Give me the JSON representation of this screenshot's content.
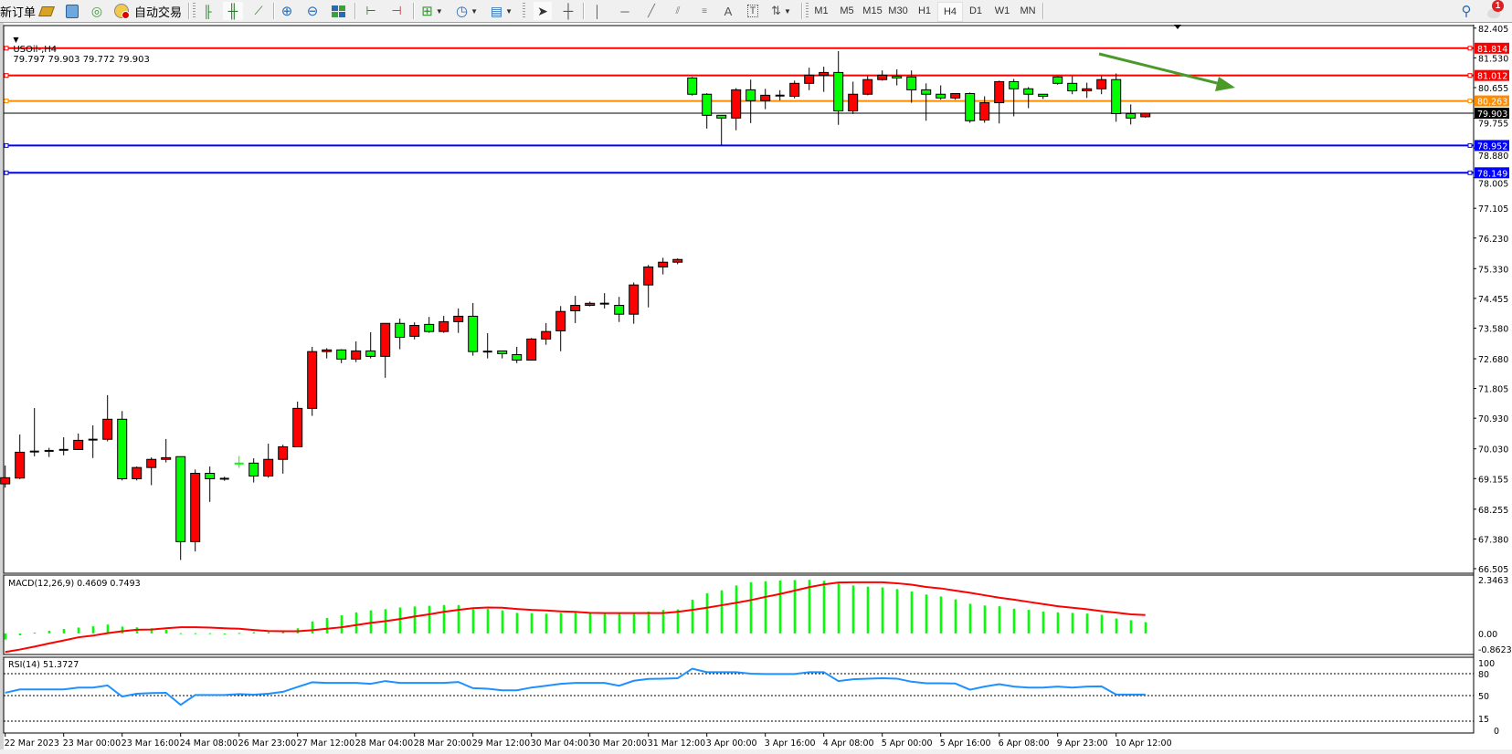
{
  "toolbar": {
    "new_order": "新订单",
    "auto_trading": "自动交易",
    "periods": [
      "M1",
      "M5",
      "M15",
      "M30",
      "H1",
      "H4",
      "D1",
      "W1",
      "MN"
    ],
    "active_period": "H4",
    "notification_count": "1",
    "icons": [
      "new-order",
      "market-watch",
      "navigator",
      "signal",
      "auto-trading",
      "bar-chart",
      "candlestick-chart",
      "line-chart",
      "zoom-in",
      "zoom-out",
      "tile-windows",
      "chart-shift",
      "autoscroll",
      "indicators",
      "periodicity",
      "templates",
      "cursor",
      "crosshair",
      "vertical-line",
      "horizontal-line",
      "trendline",
      "equidistant-channel",
      "fibonacci",
      "text",
      "text-label",
      "arrows",
      "search",
      "notifications"
    ]
  },
  "chart": {
    "symbol": "USOil-,H4",
    "ohlc_readout": "79.797 79.903 79.772 79.903",
    "bid_label": "79.903",
    "price_ticks": [
      "82.405",
      "81.530",
      "80.655",
      "79.755",
      "78.880",
      "78.005",
      "77.105",
      "76.230",
      "75.330",
      "74.455",
      "73.580",
      "72.680",
      "71.805",
      "70.930",
      "70.030",
      "69.155",
      "68.255",
      "67.380",
      "66.505"
    ],
    "levels": [
      {
        "price": 81.814,
        "label": "81.814",
        "color": "#ff0000"
      },
      {
        "price": 81.012,
        "label": "81.012",
        "color": "#ff0000"
      },
      {
        "price": 80.263,
        "label": "80.263",
        "color": "#ff8c00"
      },
      {
        "price": 78.952,
        "label": "78.952",
        "color": "#0000ff"
      },
      {
        "price": 78.149,
        "label": "78.149",
        "color": "#0000ff"
      }
    ],
    "arrow_color": "#4a9a2a",
    "bull_color": "#ff0000",
    "bear_color": "#00ff00",
    "time_labels": [
      "22 Mar 2023",
      "23 Mar 00:00",
      "23 Mar 16:00",
      "24 Mar 08:00",
      "26 Mar 23:00",
      "27 Mar 12:00",
      "28 Mar 04:00",
      "28 Mar 20:00",
      "29 Mar 12:00",
      "30 Mar 04:00",
      "30 Mar 20:00",
      "31 Mar 12:00",
      "3 Apr 00:00",
      "3 Apr 16:00",
      "4 Apr 08:00",
      "5 Apr 00:00",
      "5 Apr 16:00",
      "6 Apr 08:00",
      "9 Apr 23:00",
      "10 Apr 12:00"
    ]
  },
  "macd": {
    "label": "MACD(12,26,9) 0.4609 0.7493",
    "axis_labels": [
      "2.3463",
      "0.00",
      "-0.8623"
    ],
    "max": 2.3463,
    "min": -0.8623,
    "histogram_color": "#00ff00",
    "signal_color": "#ff0000"
  },
  "rsi": {
    "label": "RSI(14) 51.3727",
    "axis_labels": [
      "100",
      "80",
      "50",
      "15",
      "0"
    ],
    "levels": [
      80,
      50,
      15
    ],
    "line_color": "#1e90ff"
  },
  "chart_data": {
    "type": "candlestick",
    "ylim": [
      66.37,
      82.48
    ],
    "ohlc": [
      [
        69.0,
        69.54,
        68.89,
        69.18
      ],
      [
        69.17,
        70.45,
        69.14,
        69.93
      ],
      [
        69.95,
        71.23,
        69.81,
        69.95
      ],
      [
        69.97,
        70.06,
        69.79,
        69.97
      ],
      [
        70.0,
        70.37,
        69.84,
        70.0
      ],
      [
        70.01,
        70.48,
        70.0,
        70.28
      ],
      [
        70.3,
        70.72,
        69.76,
        70.3
      ],
      [
        70.31,
        71.61,
        70.25,
        70.9
      ],
      [
        70.9,
        71.14,
        69.1,
        69.15
      ],
      [
        69.15,
        69.51,
        69.1,
        69.48
      ],
      [
        69.48,
        69.78,
        68.96,
        69.72
      ],
      [
        69.72,
        70.32,
        69.63,
        69.77
      ],
      [
        69.8,
        69.8,
        66.76,
        67.3
      ],
      [
        67.3,
        69.42,
        67.01,
        69.31
      ],
      [
        69.31,
        69.51,
        68.47,
        69.15
      ],
      [
        69.15,
        69.21,
        69.09,
        69.15
      ],
      [
        69.6,
        69.82,
        69.47,
        69.595
      ],
      [
        69.61,
        69.75,
        69.04,
        69.23
      ],
      [
        69.23,
        70.18,
        69.18,
        69.72
      ],
      [
        69.72,
        70.15,
        69.3,
        70.09
      ],
      [
        70.09,
        71.42,
        70.09,
        71.22
      ],
      [
        71.22,
        73.03,
        71.0,
        72.89
      ],
      [
        72.89,
        72.99,
        72.69,
        72.94
      ],
      [
        72.94,
        72.96,
        72.55,
        72.67
      ],
      [
        72.67,
        73.19,
        72.58,
        72.91
      ],
      [
        72.91,
        73.46,
        72.69,
        72.75
      ],
      [
        72.75,
        73.72,
        72.12,
        73.72
      ],
      [
        73.72,
        73.86,
        72.96,
        73.31
      ],
      [
        73.34,
        73.75,
        73.25,
        73.66
      ],
      [
        73.69,
        73.91,
        73.44,
        73.48
      ],
      [
        73.48,
        73.94,
        73.44,
        73.77
      ],
      [
        73.77,
        74.16,
        73.44,
        73.93
      ],
      [
        73.93,
        74.32,
        72.77,
        72.89
      ],
      [
        72.89,
        73.43,
        72.69,
        72.89
      ],
      [
        72.91,
        72.91,
        72.69,
        72.83
      ],
      [
        72.8,
        73.03,
        72.55,
        72.64
      ],
      [
        72.64,
        73.29,
        72.64,
        73.26
      ],
      [
        73.26,
        73.73,
        73.09,
        73.48
      ],
      [
        73.5,
        74.23,
        72.9,
        74.07
      ],
      [
        74.09,
        74.53,
        73.73,
        74.25
      ],
      [
        74.25,
        74.36,
        74.22,
        74.31
      ],
      [
        74.3,
        74.61,
        74.16,
        74.3
      ],
      [
        74.25,
        74.5,
        73.76,
        73.99
      ],
      [
        73.99,
        74.92,
        73.71,
        74.85
      ],
      [
        74.85,
        75.44,
        74.19,
        75.38
      ],
      [
        75.38,
        75.65,
        75.16,
        75.52
      ],
      [
        75.52,
        75.63,
        75.46,
        75.6
      ],
      [
        80.94,
        80.97,
        80.42,
        80.46
      ],
      [
        80.46,
        80.49,
        79.45,
        79.84
      ],
      [
        79.84,
        79.84,
        78.97,
        79.76
      ],
      [
        79.76,
        80.64,
        79.4,
        80.59
      ],
      [
        80.59,
        80.89,
        79.61,
        80.27
      ],
      [
        80.27,
        80.62,
        80.02,
        80.43
      ],
      [
        80.42,
        80.58,
        80.28,
        80.42
      ],
      [
        80.4,
        80.86,
        80.34,
        80.78
      ],
      [
        80.78,
        81.24,
        80.58,
        81.02
      ],
      [
        81.02,
        81.27,
        80.53,
        81.1
      ],
      [
        81.1,
        81.73,
        79.56,
        79.97
      ],
      [
        79.97,
        80.83,
        79.88,
        80.46
      ],
      [
        80.46,
        80.99,
        80.43,
        80.89
      ],
      [
        80.89,
        81.16,
        80.86,
        81.02
      ],
      [
        80.99,
        81.19,
        80.72,
        80.94
      ],
      [
        80.97,
        81.16,
        80.21,
        80.59
      ],
      [
        80.59,
        80.78,
        79.68,
        80.46
      ],
      [
        80.46,
        80.72,
        80.3,
        80.35
      ],
      [
        80.35,
        80.48,
        80.3,
        80.48
      ],
      [
        80.48,
        80.51,
        79.62,
        79.68
      ],
      [
        79.7,
        80.4,
        79.62,
        80.21
      ],
      [
        80.21,
        80.86,
        79.6,
        80.83
      ],
      [
        80.83,
        80.91,
        79.81,
        80.62
      ],
      [
        80.62,
        80.67,
        80.05,
        80.46
      ],
      [
        80.46,
        80.46,
        80.32,
        80.4
      ],
      [
        80.97,
        80.99,
        80.74,
        80.78
      ],
      [
        80.78,
        80.99,
        80.46,
        80.56
      ],
      [
        80.56,
        80.8,
        80.35,
        80.62
      ],
      [
        80.62,
        80.99,
        80.46,
        80.89
      ],
      [
        80.89,
        81.07,
        79.65,
        79.89
      ],
      [
        79.89,
        80.16,
        79.57,
        79.76
      ],
      [
        79.797,
        79.903,
        79.772,
        79.903
      ]
    ],
    "macd_histogram": [
      -0.25,
      -0.08,
      0.03,
      0.11,
      0.18,
      0.24,
      0.29,
      0.36,
      0.28,
      0.25,
      0.21,
      0.15,
      0.01,
      0.01,
      0.01,
      -0.01,
      0.02,
      0.05,
      0.05,
      0.08,
      0.21,
      0.49,
      0.63,
      0.74,
      0.86,
      0.94,
      0.99,
      1.06,
      1.1,
      1.13,
      1.16,
      1.16,
      0.99,
      1.0,
      0.94,
      0.84,
      0.83,
      0.8,
      0.84,
      0.86,
      0.85,
      0.84,
      0.8,
      0.84,
      0.89,
      0.96,
      0.98,
      1.38,
      1.64,
      1.76,
      1.96,
      2.09,
      2.13,
      2.16,
      2.18,
      2.19,
      2.15,
      2.04,
      1.96,
      1.91,
      1.88,
      1.81,
      1.71,
      1.59,
      1.51,
      1.39,
      1.21,
      1.14,
      1.11,
      1.01,
      0.96,
      0.89,
      0.86,
      0.84,
      0.81,
      0.76,
      0.61,
      0.54,
      0.4609
    ],
    "macd_signal": [
      -0.76,
      -0.66,
      -0.54,
      -0.41,
      -0.29,
      -0.16,
      -0.09,
      0.01,
      0.09,
      0.15,
      0.16,
      0.21,
      0.25,
      0.25,
      0.24,
      0.21,
      0.19,
      0.14,
      0.1,
      0.09,
      0.09,
      0.13,
      0.19,
      0.25,
      0.34,
      0.43,
      0.5,
      0.59,
      0.69,
      0.78,
      0.88,
      0.96,
      1.03,
      1.06,
      1.05,
      1.0,
      0.96,
      0.94,
      0.9,
      0.88,
      0.84,
      0.83,
      0.83,
      0.83,
      0.83,
      0.83,
      0.88,
      0.96,
      1.05,
      1.15,
      1.25,
      1.36,
      1.49,
      1.61,
      1.75,
      1.89,
      2.0,
      2.08,
      2.09,
      2.09,
      2.09,
      2.05,
      1.99,
      1.9,
      1.84,
      1.75,
      1.66,
      1.56,
      1.46,
      1.38,
      1.29,
      1.2,
      1.11,
      1.05,
      0.99,
      0.91,
      0.85,
      0.78,
      0.7493
    ],
    "rsi": [
      53.8,
      58.4,
      58.4,
      58.4,
      58.4,
      61.0,
      61.0,
      63.9,
      48.7,
      52.5,
      53.4,
      53.8,
      37.3,
      50.8,
      50.8,
      50.8,
      52.1,
      51.3,
      52.5,
      55.1,
      61.8,
      68.2,
      67.3,
      67.3,
      67.3,
      66.1,
      69.9,
      67.3,
      67.3,
      67.3,
      67.3,
      68.6,
      60.1,
      59.3,
      57.2,
      57.2,
      61.0,
      63.5,
      66.1,
      67.3,
      67.3,
      67.3,
      63.5,
      70.3,
      72.8,
      73.2,
      73.7,
      86.8,
      82.1,
      82.1,
      82.1,
      80.0,
      79.6,
      79.6,
      79.6,
      82.1,
      82.1,
      69.9,
      72.4,
      73.2,
      73.7,
      73.2,
      69.0,
      66.9,
      66.9,
      66.5,
      58.0,
      62.3,
      65.6,
      62.3,
      61.0,
      61.0,
      62.3,
      61.0,
      62.3,
      62.7,
      51.37,
      51.37,
      51.3727
    ]
  }
}
